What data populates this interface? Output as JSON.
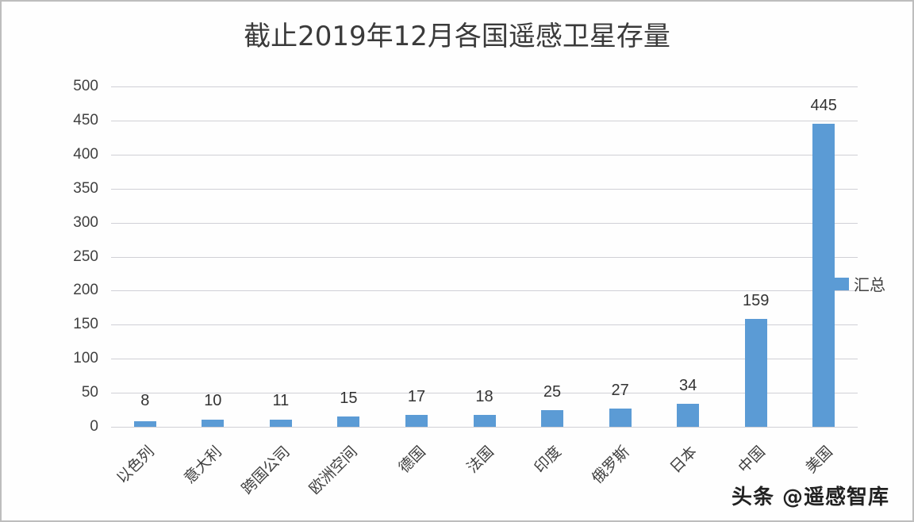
{
  "chart_data": {
    "type": "bar",
    "title": "截止2019年12月各国遥感卫星存量",
    "categories": [
      "以色列",
      "意大利",
      "跨国公司",
      "欧洲空间",
      "德国",
      "法国",
      "印度",
      "俄罗斯",
      "日本",
      "中国",
      "美国"
    ],
    "series": [
      {
        "name": "汇总",
        "values": [
          8,
          10,
          11,
          15,
          17,
          18,
          25,
          27,
          34,
          159,
          445
        ],
        "color": "#5b9bd5"
      }
    ],
    "values": [
      8,
      10,
      11,
      15,
      17,
      18,
      25,
      27,
      34,
      159,
      445
    ],
    "data_labels": [
      "8",
      "10",
      "11",
      "15",
      "17",
      "18",
      "25",
      "27",
      "34",
      "159",
      "445"
    ],
    "xlabel": "",
    "ylabel": "",
    "ylim": [
      0,
      500
    ],
    "yticks": [
      "0",
      "50",
      "100",
      "150",
      "200",
      "250",
      "300",
      "350",
      "400",
      "450",
      "500"
    ],
    "grid": true,
    "legend": {
      "position": "right",
      "entries": [
        "汇总"
      ]
    }
  },
  "watermark": "头条 @遥感智库"
}
